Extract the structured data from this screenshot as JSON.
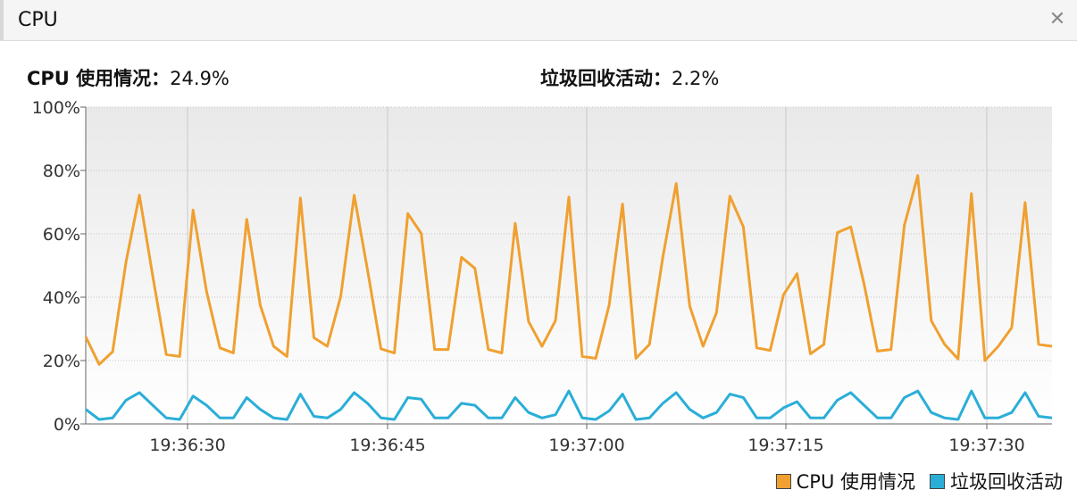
{
  "panel": {
    "title": "CPU",
    "close_icon": "close-icon"
  },
  "stats": {
    "cpu_label": "CPU 使用情况",
    "cpu_value": "24.9%",
    "gc_label": "垃圾回收活动",
    "gc_value": "2.2%",
    "separator": "："
  },
  "colors": {
    "cpu": "#f0a030",
    "gc": "#2aaed8"
  },
  "chart_data": {
    "type": "line",
    "ylim": [
      0,
      100
    ],
    "y_ticks": [
      "0%",
      "20%",
      "40%",
      "60%",
      "80%",
      "100%"
    ],
    "x_ticks": [
      "19:36:30",
      "19:36:45",
      "19:37:00",
      "19:37:15",
      "19:37:30"
    ],
    "grid": true,
    "legend_position": "bottom-right",
    "series": [
      {
        "name": "CPU 使用情况",
        "values": [
          27.5,
          18.8,
          22.8,
          51.1,
          72.2,
          46.6,
          21.9,
          21.3,
          67.5,
          41.8,
          24.0,
          22.4,
          64.6,
          37.5,
          24.5,
          21.3,
          71.3,
          27.2,
          24.5,
          40.2,
          72.2,
          48.5,
          23.7,
          22.4,
          66.4,
          60.1,
          23.5,
          23.5,
          52.6,
          49.1,
          23.5,
          22.4,
          63.3,
          32.3,
          24.5,
          32.6,
          71.6,
          21.3,
          20.7,
          37.5,
          69.4,
          20.7,
          25.1,
          52.6,
          75.9,
          37.2,
          24.5,
          35.1,
          71.9,
          62.2,
          24.0,
          23.2,
          40.8,
          47.4,
          22.1,
          25.1,
          60.4,
          62.2,
          44.1,
          23.0,
          23.5,
          62.7,
          78.4,
          32.6,
          25.1,
          20.5,
          72.7,
          20.0,
          24.5,
          30.4,
          69.9,
          25.1,
          24.5
        ]
      },
      {
        "name": "垃圾回收活动",
        "values": [
          4.6,
          1.4,
          1.9,
          7.5,
          9.9,
          5.9,
          1.9,
          1.4,
          8.8,
          5.9,
          1.9,
          1.9,
          8.3,
          4.6,
          1.9,
          1.4,
          9.4,
          2.4,
          1.9,
          4.6,
          9.9,
          6.5,
          1.9,
          1.4,
          8.3,
          7.8,
          1.9,
          1.9,
          6.5,
          5.9,
          1.9,
          1.9,
          8.3,
          3.6,
          1.9,
          2.9,
          10.4,
          1.9,
          1.4,
          4.1,
          9.4,
          1.4,
          1.9,
          6.5,
          9.9,
          4.6,
          1.9,
          3.6,
          9.4,
          8.3,
          1.9,
          1.9,
          5.1,
          7.0,
          1.9,
          1.9,
          7.5,
          9.9,
          5.9,
          1.9,
          1.9,
          8.3,
          10.4,
          3.6,
          1.9,
          1.4,
          10.4,
          1.9,
          1.9,
          3.6,
          9.9,
          2.4,
          1.9
        ]
      }
    ]
  }
}
